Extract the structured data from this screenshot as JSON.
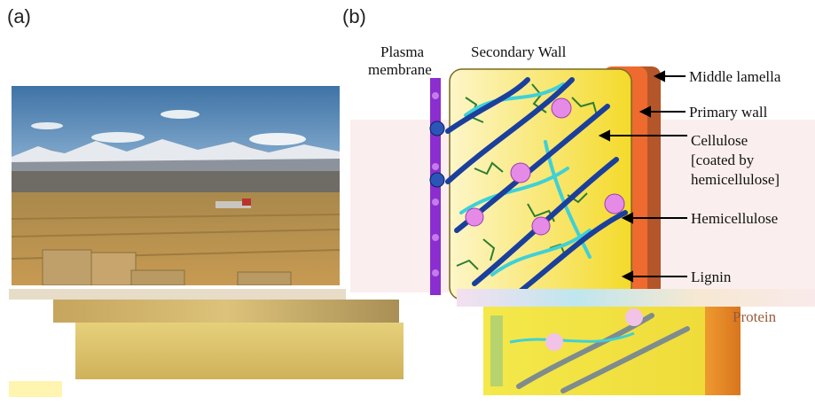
{
  "panels": {
    "a": "(a)",
    "b": "(b)"
  },
  "labels": {
    "plasma_line1": "Plasma",
    "plasma_line2": "membrane",
    "secondary_wall": "Secondary Wall",
    "middle_lamella": "Middle lamella",
    "primary_wall": "Primary wall",
    "cellulose_1": "Cellulose",
    "cellulose_2": "[coated by",
    "cellulose_3": "hemicellulose]",
    "hemicellulose": "Hemicellulose",
    "lignin": "Lignin",
    "protein": "Protein"
  },
  "colors": {
    "wall_yellow": "#f6e24a",
    "wall_pale": "#fdf6c8",
    "primary_orange": "#ee6a2e",
    "lamella_brown": "#b4552a",
    "cellulose_blue": "#1a3f9c",
    "hemi_cyan": "#3fd0d8",
    "lignin_green": "#2e7d32",
    "membrane_purple": "#8a2ed0",
    "protein_pink": "#e58ae6"
  }
}
